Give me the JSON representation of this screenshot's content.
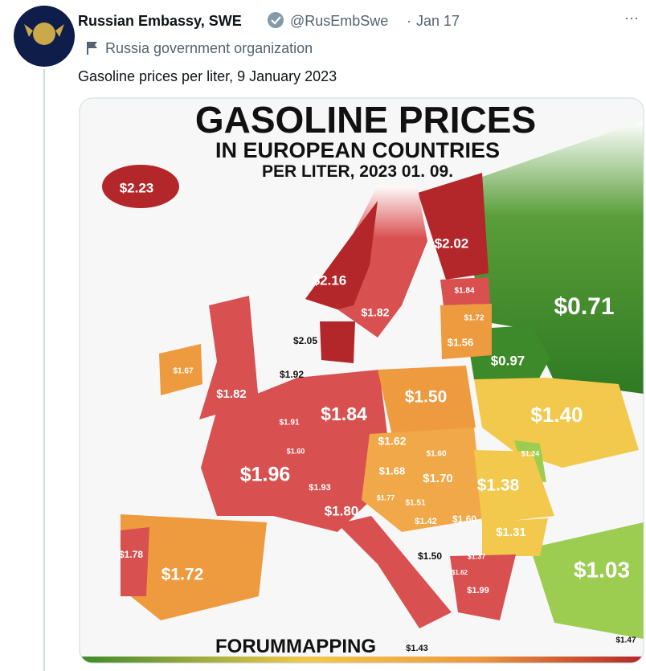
{
  "tweet": {
    "author_name": "Russian Embassy, SWE",
    "handle": "@RusEmbSwe",
    "separator": "·",
    "date": "Jan 17",
    "more": "···",
    "account_label": "Russia government organization",
    "text": "Gasoline prices per liter, 9 January 2023"
  },
  "image": {
    "title": "GASOLINE PRICES",
    "subtitle": "IN EUROPEAN COUNTRIES",
    "date_line": "PER LITER, 2023 01. 09.",
    "price_labels": [
      "$2.23",
      "$2.16",
      "$2.02",
      "$1.82",
      "$1.84",
      "$1.72",
      "$1.56",
      "$0.97",
      "$0.71",
      "$2.05",
      "$1.92",
      "$1.67",
      "$1.82",
      "$1.84",
      "$1.50",
      "$1.40",
      "$1.91",
      "$1.60",
      "$1.62",
      "$1.60",
      "$1.24",
      "$1.96",
      "$1.68",
      "$1.70",
      "$1.38",
      "$1.93",
      "$1.77",
      "$1.51",
      "$1.80",
      "$1.42",
      "$1.60",
      "$1.31",
      "$1.78",
      "$1.72",
      "$1.50",
      "$1.37",
      "$1.62",
      "$1.99",
      "$1.03",
      "$1.47",
      "$1.43"
    ],
    "source": "FORUMMAPPING"
  }
}
